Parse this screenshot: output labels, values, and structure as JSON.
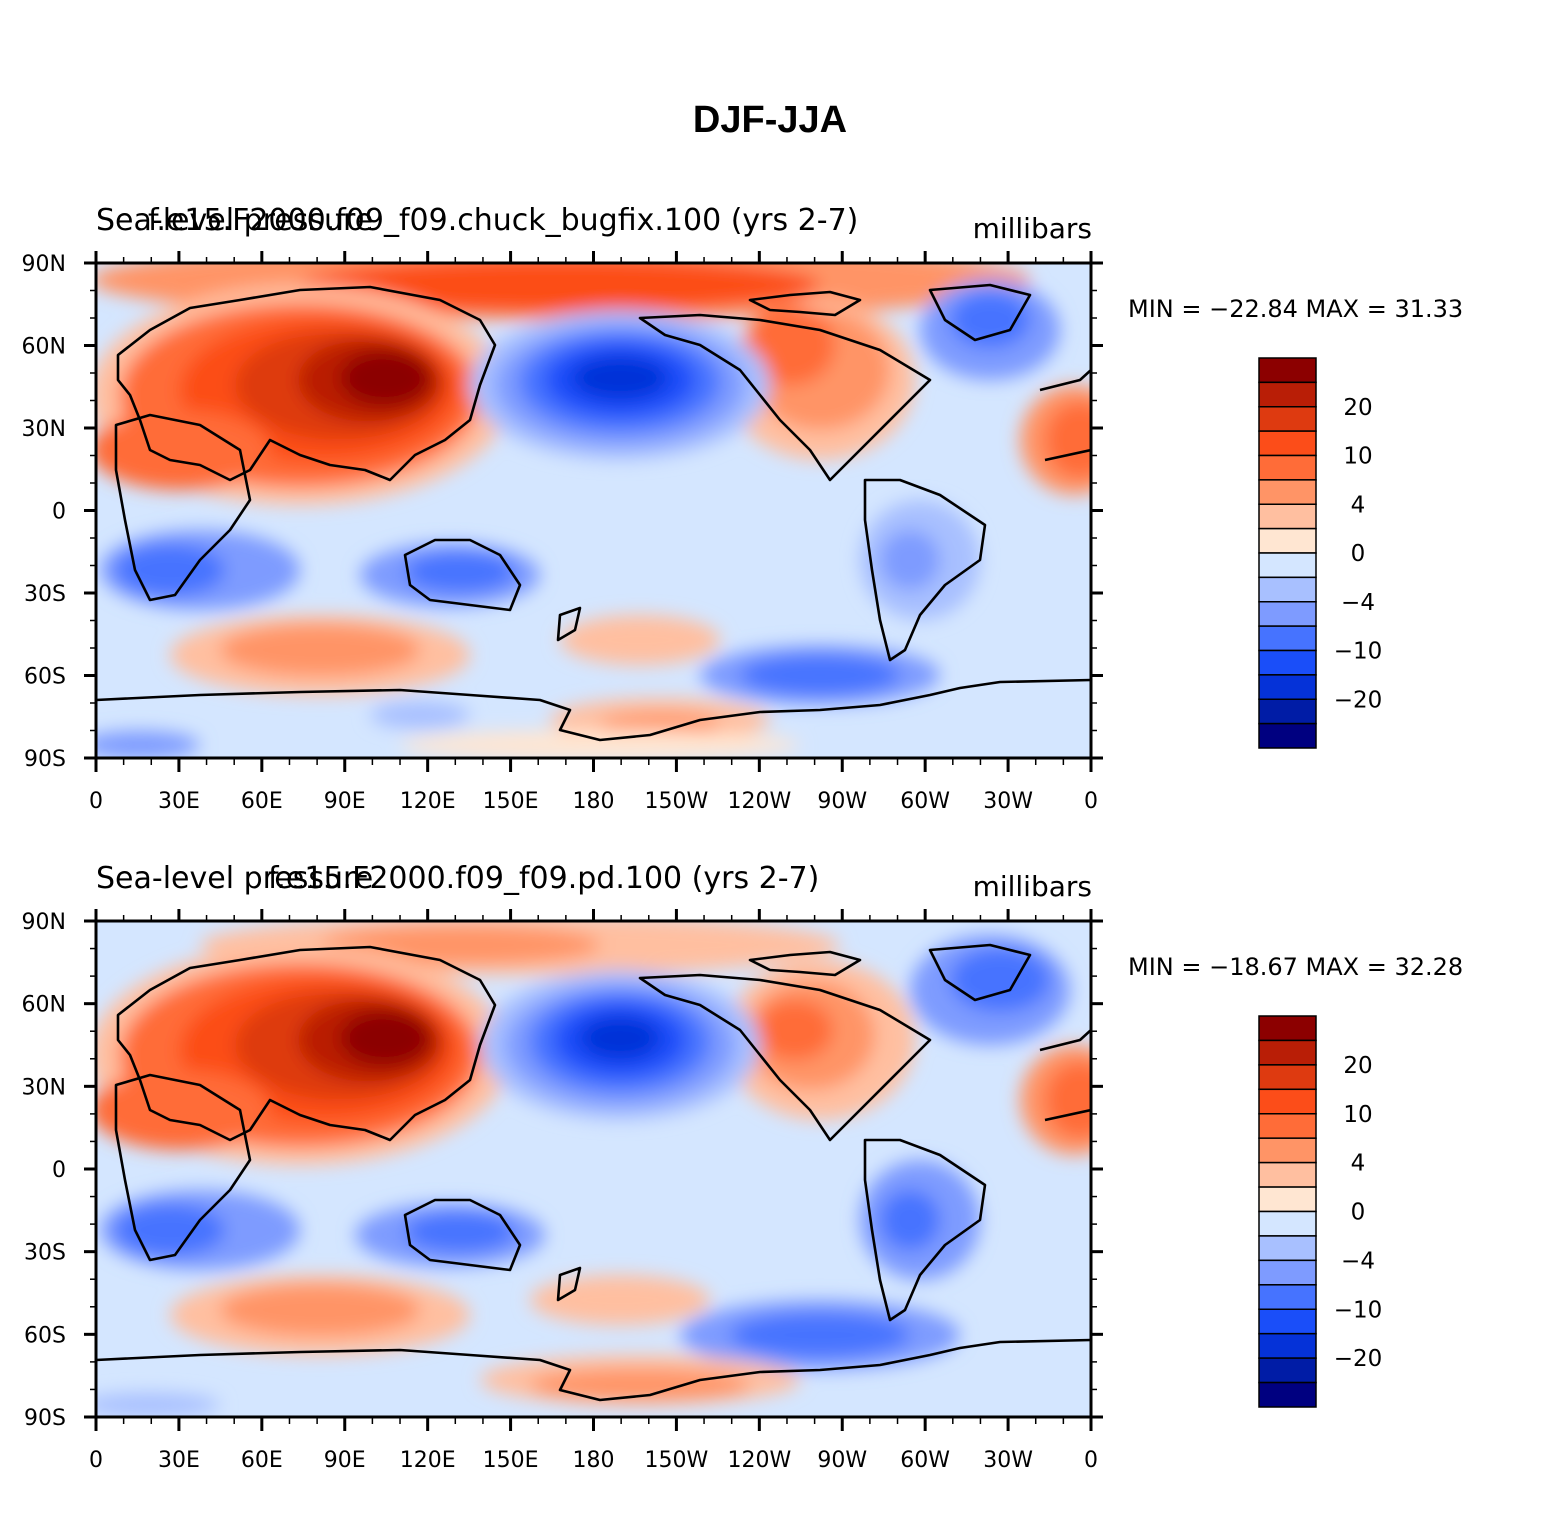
{
  "title": "DJF-JJA",
  "colors": [
    "#000080",
    "#001ca6",
    "#0532d8",
    "#1a4ef9",
    "#4673ff",
    "#7e9bff",
    "#a8c0ff",
    "#d4e6ff",
    "#ffe6d2",
    "#ffbfa0",
    "#ff9466",
    "#ff6c38",
    "#fc4d19",
    "#de3a10",
    "#b91e06",
    "#8c0000"
  ],
  "panels": [
    {
      "case_title": "f.e15.F2000.f09_f09.chuck_bugfix.100 (yrs 2-7)",
      "variable": "Sea-level pressure",
      "units": "millibars",
      "min_max_text": "MIN = −22.84  MAX =   31.33",
      "min": -22.84,
      "max": 31.33
    },
    {
      "case_title": "f.e15.F2000.f09_f09.pd.100 (yrs 2-7)",
      "variable": "Sea-level pressure",
      "units": "millibars",
      "min_max_text": "MIN = −18.67  MAX =   32.28",
      "min": -18.67,
      "max": 32.28
    }
  ],
  "lat_ticks": [
    "90N",
    "60N",
    "30N",
    "0",
    "30S",
    "60S",
    "90S"
  ],
  "lon_ticks": [
    "0",
    "30E",
    "60E",
    "90E",
    "120E",
    "150E",
    "180",
    "150W",
    "120W",
    "90W",
    "60W",
    "30W",
    "0"
  ],
  "colorbar_labels": [
    "20",
    "10",
    "4",
    "0",
    "−4",
    "−10",
    "−20"
  ]
}
